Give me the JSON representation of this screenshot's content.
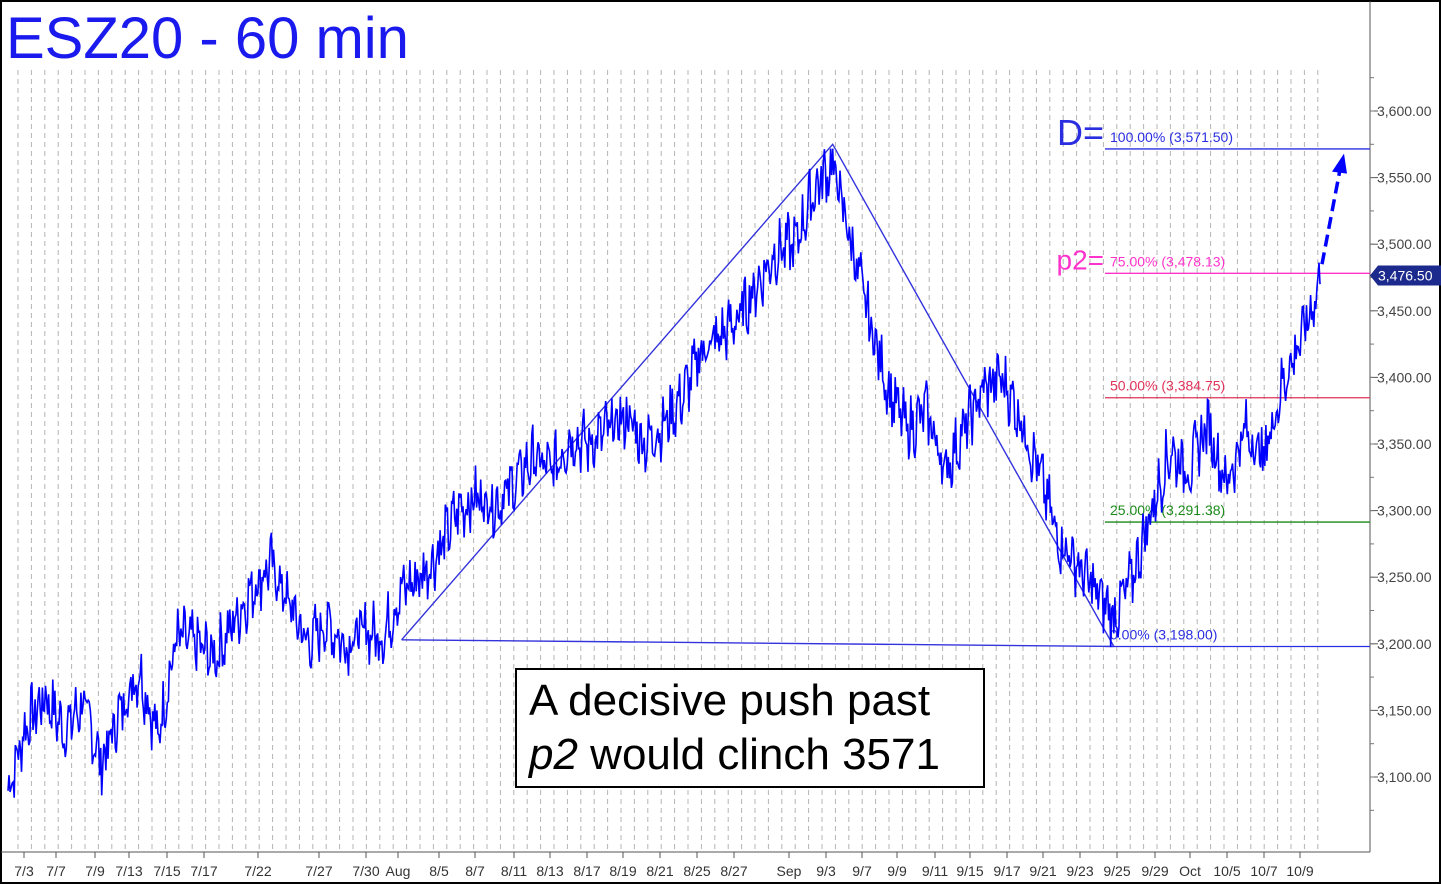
{
  "chart_data": {
    "type": "line",
    "title": "ESZ20 - 60 min",
    "xlabel": "",
    "ylabel": "",
    "ylim": [
      3065,
      3660
    ],
    "grid": true,
    "x_tick_labels": [
      "7/3",
      "7/7",
      "7/9",
      "7/13",
      "7/15",
      "7/17",
      "7/22",
      "7/27",
      "7/30",
      "Aug",
      "8/5",
      "8/7",
      "8/11",
      "8/13",
      "8/17",
      "8/19",
      "8/21",
      "8/25",
      "8/27",
      "Sep",
      "9/3",
      "9/7",
      "9/9",
      "9/11",
      "9/15",
      "9/17",
      "9/21",
      "9/23",
      "9/25",
      "9/29",
      "Oct",
      "10/5",
      "10/7",
      "10/9"
    ],
    "y_tick_labels": [
      "3,100.00",
      "3,150.00",
      "3,200.00",
      "3,250.00",
      "3,300.00",
      "3,350.00",
      "3,400.00",
      "3,450.00",
      "3,500.00",
      "3,550.00",
      "3,600.00"
    ],
    "y_ticks": [
      3100,
      3150,
      3200,
      3250,
      3300,
      3350,
      3400,
      3450,
      3500,
      3550,
      3600
    ],
    "last_price_label": "3,476.50",
    "last_price": 3476.5,
    "series": [
      {
        "x": [
          "7/2",
          "7/3",
          "7/6",
          "7/7",
          "7/8",
          "7/9",
          "7/10",
          "7/13",
          "7/14",
          "7/15",
          "7/16",
          "7/17",
          "7/20",
          "7/21",
          "7/22",
          "7/23",
          "7/24",
          "7/27",
          "7/28",
          "7/29",
          "7/30",
          "7/31",
          "8/3",
          "8/4",
          "8/5",
          "8/6",
          "8/7",
          "8/10",
          "8/11",
          "8/12",
          "8/13",
          "8/14",
          "8/17",
          "8/18",
          "8/19",
          "8/20",
          "8/21",
          "8/24",
          "8/25",
          "8/26",
          "8/27",
          "8/28",
          "8/31",
          "9/1",
          "9/2",
          "9/3",
          "9/4",
          "9/8",
          "9/9",
          "9/10",
          "9/11",
          "9/14",
          "9/15",
          "9/16",
          "9/17",
          "9/18",
          "9/21",
          "9/22",
          "9/23",
          "9/24",
          "9/25",
          "9/28",
          "9/29",
          "9/30",
          "10/1",
          "10/2",
          "10/5",
          "10/6",
          "10/7",
          "10/8",
          "10/9"
        ],
        "values": [
          3090,
          3140,
          3160,
          3135,
          3155,
          3110,
          3150,
          3180,
          3130,
          3205,
          3200,
          3190,
          3215,
          3240,
          3260,
          3230,
          3200,
          3215,
          3200,
          3210,
          3205,
          3240,
          3250,
          3270,
          3300,
          3310,
          3305,
          3320,
          3340,
          3330,
          3355,
          3350,
          3360,
          3370,
          3350,
          3365,
          3385,
          3420,
          3430,
          3445,
          3470,
          3495,
          3500,
          3540,
          3560,
          3500,
          3440,
          3390,
          3360,
          3375,
          3330,
          3360,
          3390,
          3400,
          3370,
          3330,
          3280,
          3260,
          3240,
          3220,
          3250,
          3300,
          3345,
          3330,
          3365,
          3320,
          3360,
          3340,
          3395,
          3430,
          3470
        ]
      }
    ],
    "abc_pattern": [
      {
        "x": "7/31",
        "y": 3203
      },
      {
        "x": "9/2",
        "y": 3575
      },
      {
        "x": "9/24",
        "y": 3198
      }
    ],
    "levels": [
      {
        "prefix": "D=",
        "label": "100.00% (3,571.50)",
        "value": 3571.5,
        "color": "#2a2ee0"
      },
      {
        "prefix": "p2=",
        "label": "75.00% (3,478.13)",
        "value": 3478.13,
        "color": "#ff33cc"
      },
      {
        "prefix": "",
        "label": "50.00% (3,384.75)",
        "value": 3384.75,
        "color": "#e0325a"
      },
      {
        "prefix": "",
        "label": "25.00% (3,291.38)",
        "value": 3291.38,
        "color": "#1a8a1a"
      },
      {
        "prefix": "",
        "label": "0.00% (3,198.00)",
        "value": 3198.0,
        "color": "#2a2ee0"
      }
    ],
    "projection": {
      "from": 3485,
      "to": 3565
    }
  },
  "note": {
    "line1": "A decisive push past",
    "line2_italic": "p2",
    "line2_rest": " would clinch 3571"
  },
  "colors": {
    "price": "#0000ff",
    "pattern": "#3333dd",
    "grid": "#b4b4b4",
    "title": "#1a1aee"
  }
}
